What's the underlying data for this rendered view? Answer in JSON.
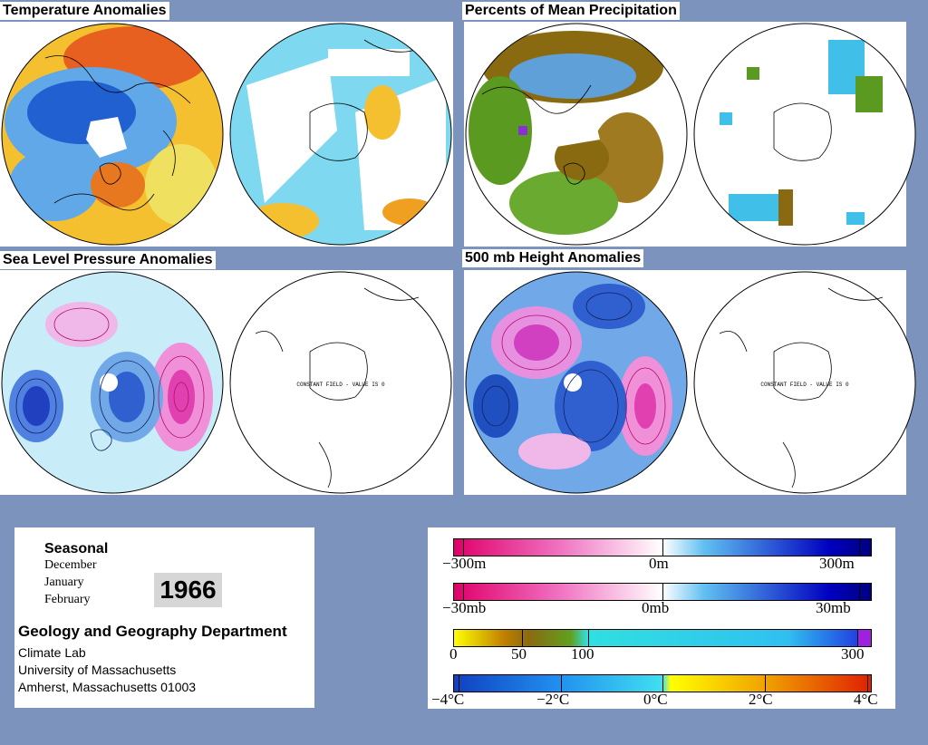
{
  "panels": {
    "temperature": {
      "title": "Temperature Anomalies"
    },
    "precipitation": {
      "title": "Percents of Mean Precipitation"
    },
    "slp": {
      "title": "Sea Level Pressure Anomalies"
    },
    "height500": {
      "title": "500 mb Height Anomalies"
    }
  },
  "constant_field_label": "CONSTANT FIELD - VALUE IS 0",
  "info": {
    "period_type": "Seasonal",
    "months": [
      "December",
      "January",
      "February"
    ],
    "year": "1966",
    "department": "Geology and Geography Department",
    "address_lines": [
      "Climate Lab",
      "University of Massachusetts",
      "Amherst, Massachusetts 01003"
    ]
  },
  "legends": {
    "height": {
      "labels": [
        "−300m",
        "0m",
        "300m"
      ]
    },
    "pressure": {
      "labels": [
        "−30mb",
        "0mb",
        "30mb"
      ]
    },
    "precip": {
      "labels": [
        "0",
        "50",
        "100",
        "300"
      ]
    },
    "temp": {
      "labels": [
        "−4°C",
        "−2°C",
        "0°C",
        "2°C",
        "4°C"
      ]
    }
  },
  "colors": {
    "background": "#7b93bd",
    "warm": "#f0a020",
    "cold": "#1a5fd0",
    "high": "#e0108a",
    "low": "#2020c0",
    "wet": "#30c0f0",
    "dry": "#8a6a10"
  }
}
